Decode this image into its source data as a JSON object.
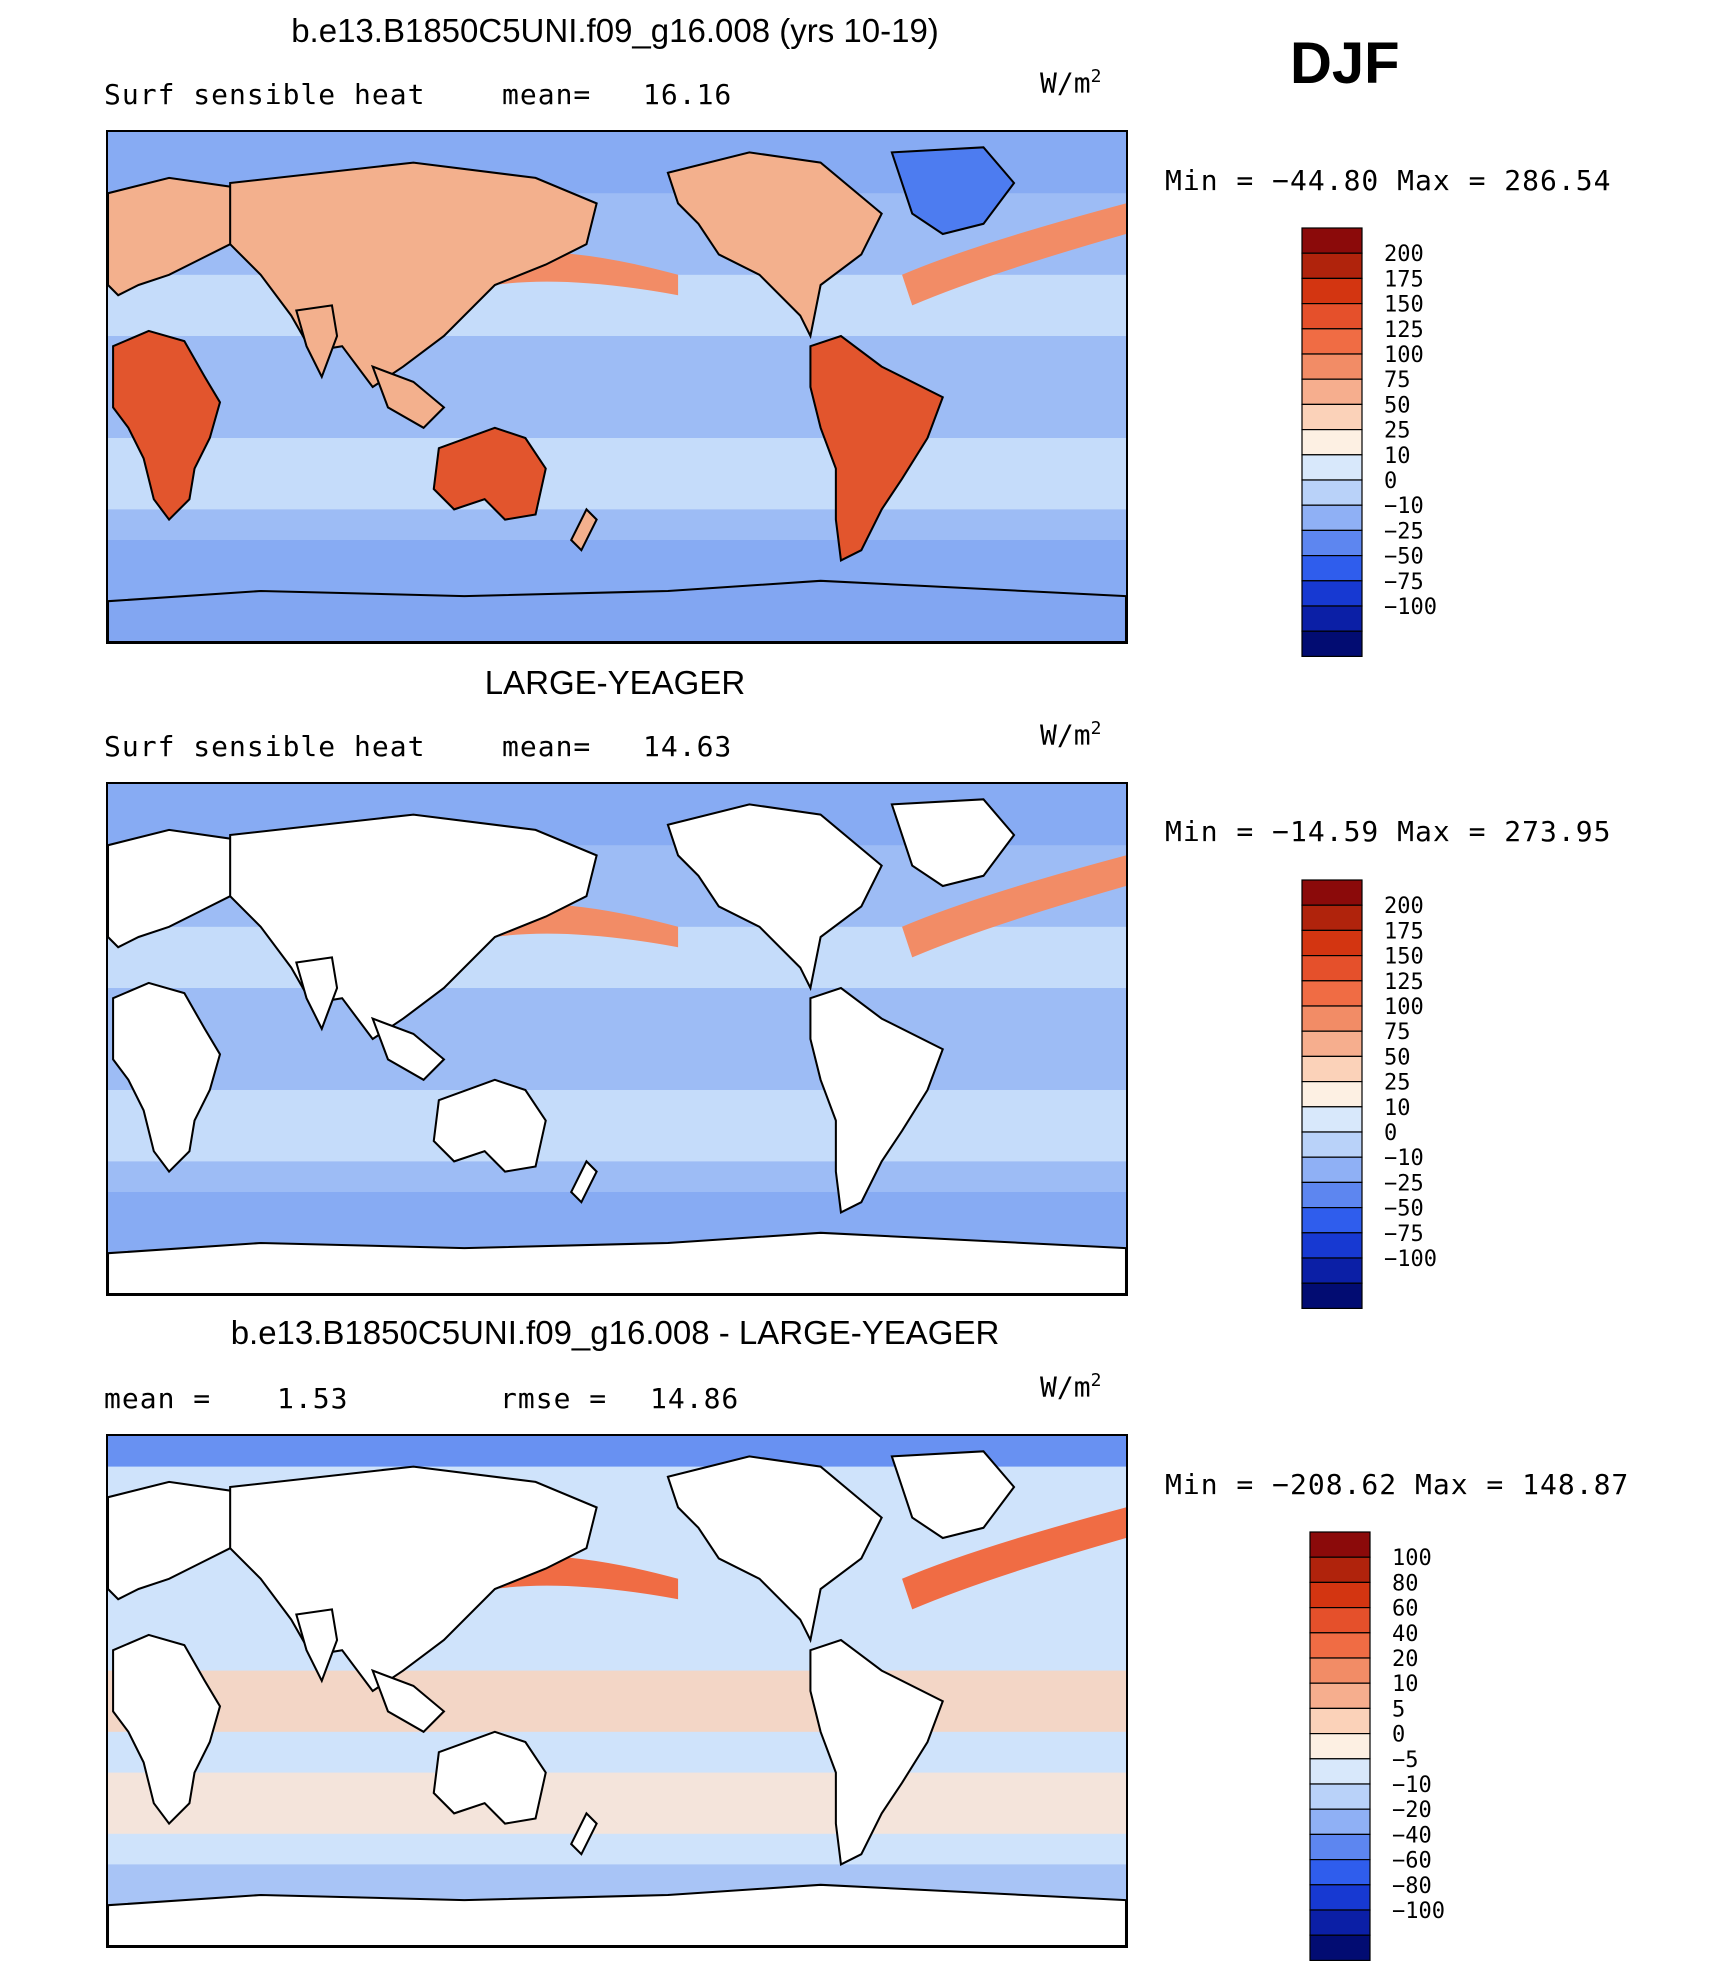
{
  "season": "DJF",
  "colors": {
    "ocean_cool": "#9dbcf5",
    "ocean_light": "#cfe3fb",
    "ocean_mid": "#82a6f2",
    "land": "#ffffff",
    "land_warm": "#f3b08d",
    "land_hot": "#e2552d",
    "cold": "#4d7cf0"
  },
  "panels": [
    {
      "title": "b.e13.B1850C5UNI.f09_g16.008 (yrs 10-19)",
      "left_label": "Surf  sensible  heat",
      "stat1_label": "mean=",
      "stat1_value": "16.16",
      "stat2_label": "",
      "stat2_value": "",
      "units": "W/m",
      "units_sup": "2",
      "minmax": "Min  =  −44.80  Max  =  286.54",
      "land_filled": true
    },
    {
      "title": "LARGE-YEAGER",
      "left_label": "Surf  sensible  heat",
      "stat1_label": "mean=",
      "stat1_value": "14.63",
      "stat2_label": "",
      "stat2_value": "",
      "units": "W/m",
      "units_sup": "2",
      "minmax": "Min  =  −14.59  Max  =  273.95",
      "land_filled": false
    },
    {
      "title": "b.e13.B1850C5UNI.f09_g16.008 - LARGE-YEAGER",
      "left_label": "mean  =",
      "stat1_label": "1.53",
      "stat1_value": "",
      "stat2_label": "rmse  =",
      "stat2_value": "14.86",
      "units": "W/m",
      "units_sup": "2",
      "minmax": "Min  =  −208.62  Max  =  148.87",
      "land_filled": false
    }
  ],
  "chart_data": [
    {
      "type": "heatmap",
      "title": "b.e13.B1850C5UNI.f09_g16.008 (yrs 10-19)",
      "variable": "Surf sensible heat",
      "units": "W/m2",
      "mean": 16.16,
      "min": -44.8,
      "max": 286.54,
      "colorbar_levels": [
        "200",
        "175",
        "150",
        "125",
        "100",
        "75",
        "50",
        "25",
        "10",
        "0",
        "−10",
        "−25",
        "−50",
        "−75",
        "−100"
      ],
      "colorbar_colors": [
        "#8b0a0a",
        "#b0230c",
        "#d33511",
        "#e5502b",
        "#f06c44",
        "#f28c66",
        "#f6ae8e",
        "#fbd2b9",
        "#fdf0e3",
        "#d8e8fb",
        "#b9d2f9",
        "#8fb0f5",
        "#5d86f0",
        "#2f5ded",
        "#1739d2",
        "#0b1fa6",
        "#020c72"
      ]
    },
    {
      "type": "heatmap",
      "title": "LARGE-YEAGER",
      "variable": "Surf sensible heat",
      "units": "W/m2",
      "mean": 14.63,
      "min": -14.59,
      "max": 273.95,
      "colorbar_levels": [
        "200",
        "175",
        "150",
        "125",
        "100",
        "75",
        "50",
        "25",
        "10",
        "0",
        "−10",
        "−25",
        "−50",
        "−75",
        "−100"
      ],
      "colorbar_colors": [
        "#8b0a0a",
        "#b0230c",
        "#d33511",
        "#e5502b",
        "#f06c44",
        "#f28c66",
        "#f6ae8e",
        "#fbd2b9",
        "#fdf0e3",
        "#d8e8fb",
        "#b9d2f9",
        "#8fb0f5",
        "#5d86f0",
        "#2f5ded",
        "#1739d2",
        "#0b1fa6",
        "#020c72"
      ]
    },
    {
      "type": "heatmap",
      "title": "b.e13.B1850C5UNI.f09_g16.008 - LARGE-YEAGER",
      "units": "W/m2",
      "mean": 1.53,
      "rmse": 14.86,
      "min": -208.62,
      "max": 148.87,
      "colorbar_levels": [
        "100",
        "80",
        "60",
        "40",
        "20",
        "10",
        "5",
        "0",
        "−5",
        "−10",
        "−20",
        "−40",
        "−60",
        "−80",
        "−100"
      ],
      "colorbar_colors": [
        "#8b0a0a",
        "#b0230c",
        "#d33511",
        "#e5502b",
        "#f06c44",
        "#f28c66",
        "#f6ae8e",
        "#fbd2b9",
        "#fdf0e3",
        "#d8e8fb",
        "#b9d2f9",
        "#8fb0f5",
        "#5d86f0",
        "#2f5ded",
        "#1739d2",
        "#0b1fa6",
        "#020c72"
      ]
    }
  ]
}
